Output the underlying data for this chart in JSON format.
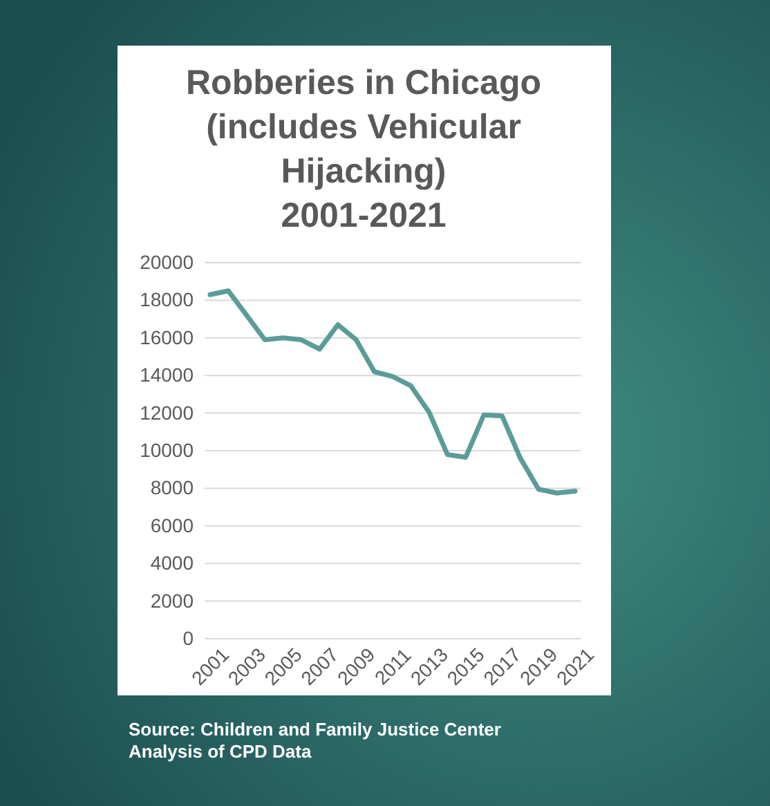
{
  "chart_data": {
    "type": "line",
    "title": "Robberies in Chicago (includes Vehicular Hijacking)\n2001-2021",
    "categories": [
      "2001",
      null,
      "2003",
      null,
      "2005",
      null,
      "2007",
      null,
      "2009",
      null,
      "2011",
      null,
      "2013",
      null,
      "2015",
      null,
      "2017",
      null,
      "2019",
      null,
      "2021"
    ],
    "series": [
      {
        "color": "#5b9c99",
        "values": [
          18300,
          18500,
          17200,
          15900,
          16000,
          15900,
          15400,
          16700,
          15900,
          14200,
          13950,
          13450,
          12050,
          9800,
          9650,
          11900,
          11850,
          9600,
          7950,
          7750,
          7850
        ]
      }
    ],
    "ylim": [
      0,
      20000
    ],
    "yticks": [
      0,
      2000,
      4000,
      6000,
      8000,
      10000,
      12000,
      14000,
      16000,
      18000,
      20000
    ],
    "grid": "y",
    "legend": false,
    "marker": "none",
    "line_style": "solid",
    "annotations": [
      "Source: Children and Family Justice Center Analysis of CPD Data"
    ]
  }
}
